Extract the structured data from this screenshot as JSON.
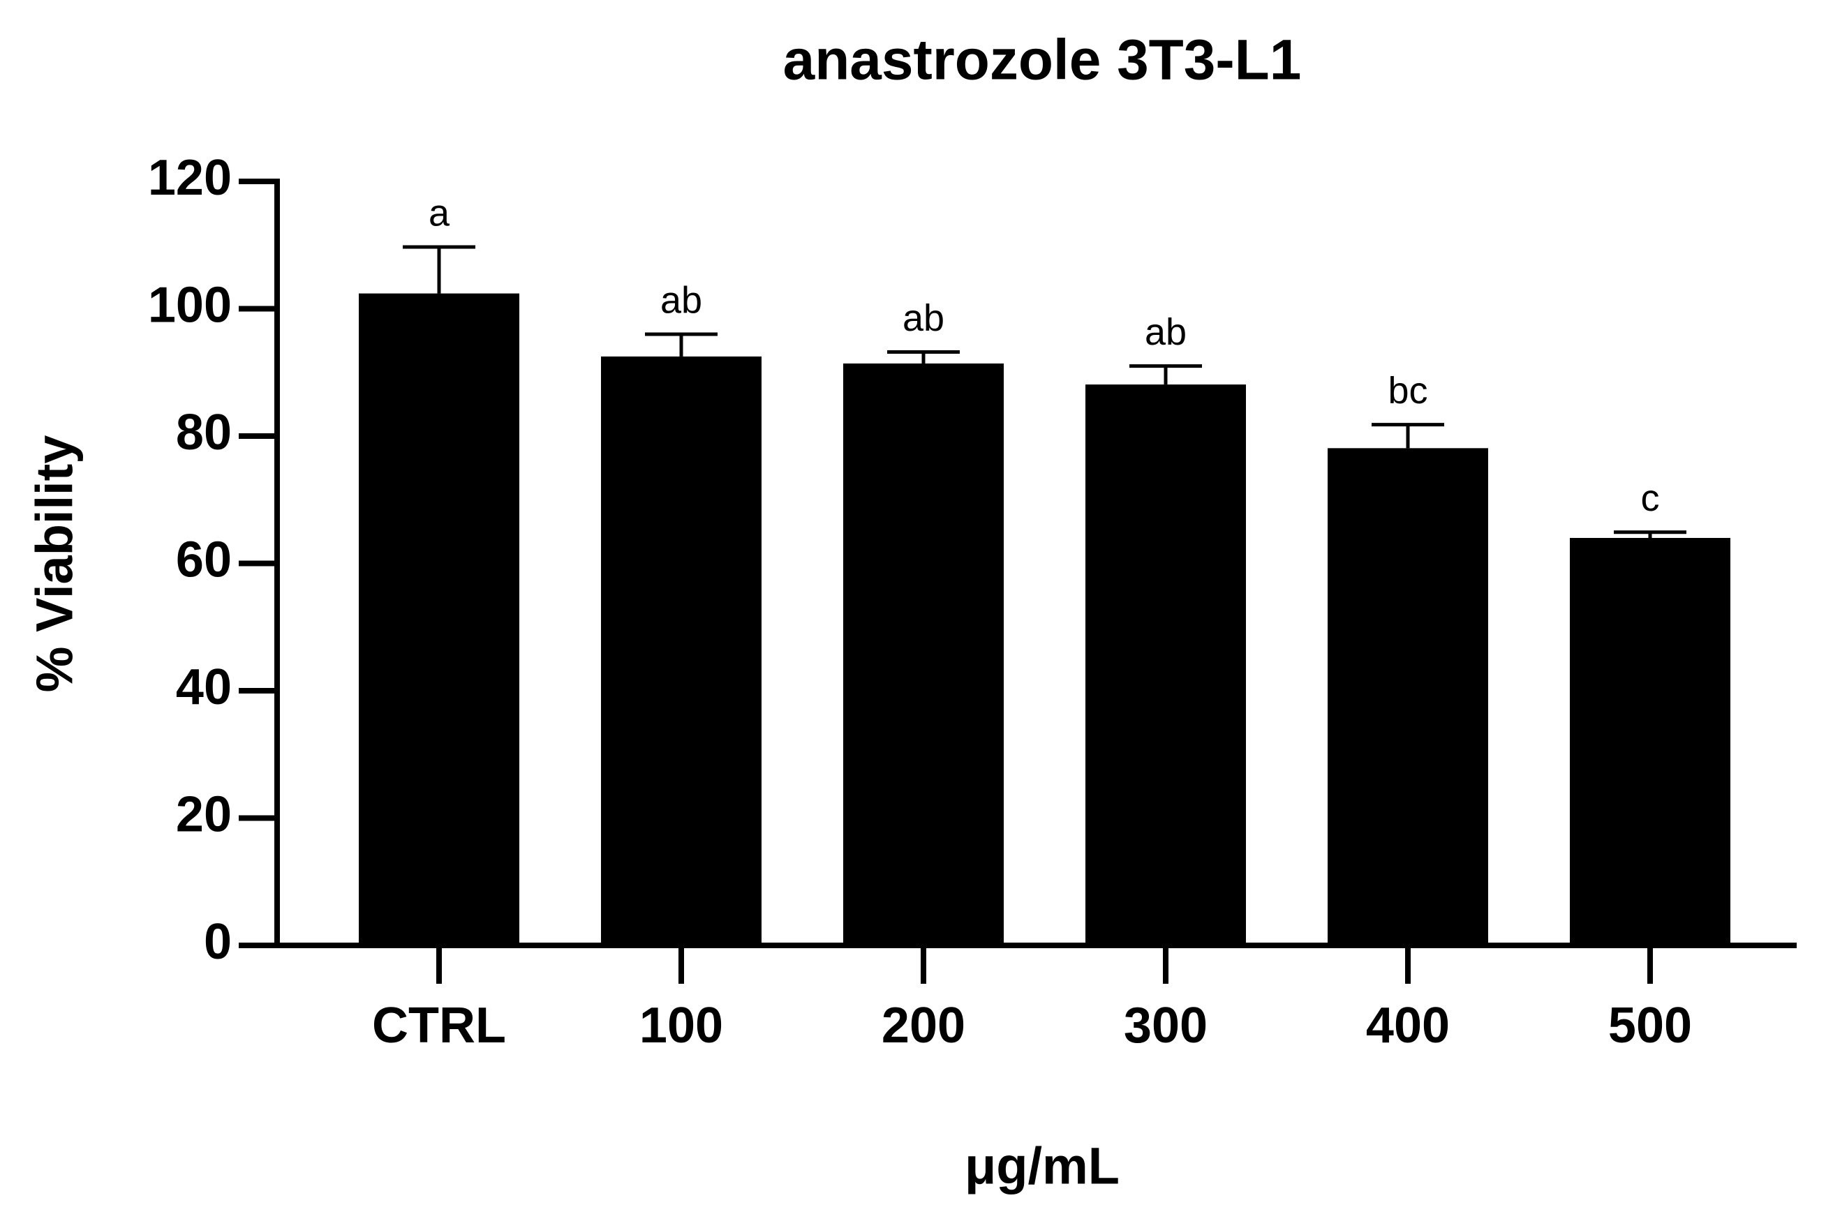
{
  "chart_data": {
    "type": "bar",
    "title": "anastrozole 3T3-L1",
    "x_label": "μg/mL",
    "y_label": "% Viability",
    "categories": [
      "CTRL",
      "100",
      "200",
      "300",
      "400",
      "500"
    ],
    "values": [
      102.4,
      92.5,
      91.4,
      88.1,
      78.1,
      64.0
    ],
    "errors": [
      7.3,
      3.5,
      1.8,
      2.9,
      3.7,
      0.9
    ],
    "annotations": [
      "a",
      "ab",
      "ab",
      "ab",
      "bc",
      "c"
    ],
    "color": "#000000",
    "ylim": [
      0,
      120
    ],
    "yticks": [
      0,
      20,
      40,
      60,
      80,
      100,
      120
    ],
    "grid": false
  }
}
